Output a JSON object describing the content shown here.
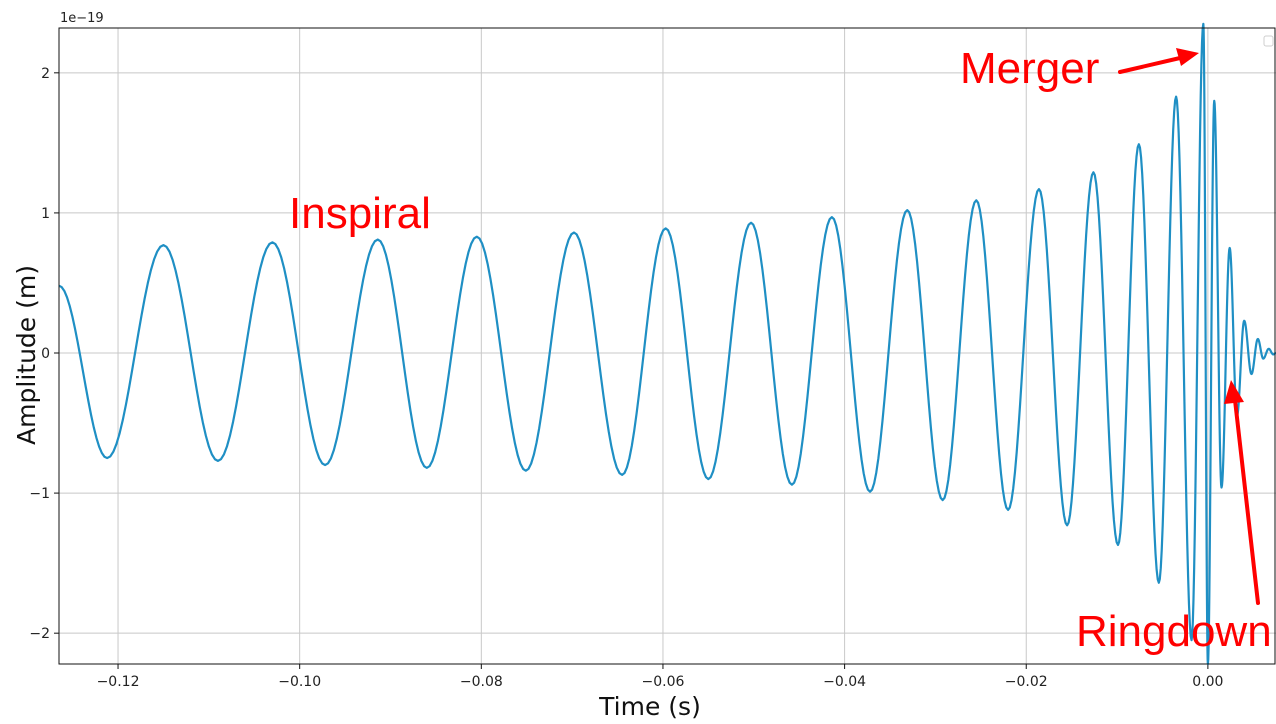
{
  "chart_data": {
    "type": "line",
    "title": "",
    "xlabel": "Time (s)",
    "ylabel": "Amplitude (m)",
    "offset_text": "1e−19",
    "xlim": [
      -0.1265,
      0.0075
    ],
    "ylim": [
      -2.22,
      2.32
    ],
    "grid": true,
    "x_ticks": [
      -0.12,
      -0.1,
      -0.08,
      -0.06,
      -0.04,
      -0.02,
      0.0
    ],
    "x_tick_labels": [
      "−0.12",
      "−0.10",
      "−0.08",
      "−0.06",
      "−0.04",
      "−0.02",
      "0.00"
    ],
    "y_ticks": [
      -2,
      -1,
      0,
      1,
      2
    ],
    "y_tick_labels": [
      "−2",
      "−1",
      "0",
      "1",
      "2"
    ],
    "line_color": "#1f8fc4",
    "series": [
      {
        "extrema": [
          [
            -0.1265,
            0.48
          ],
          [
            -0.1212,
            -0.75
          ],
          [
            -0.115,
            0.77
          ],
          [
            -0.109,
            -0.77
          ],
          [
            -0.103,
            0.79
          ],
          [
            -0.0972,
            -0.8
          ],
          [
            -0.0914,
            0.81
          ],
          [
            -0.086,
            -0.82
          ],
          [
            -0.0805,
            0.83
          ],
          [
            -0.0751,
            -0.84
          ],
          [
            -0.0698,
            0.86
          ],
          [
            -0.0645,
            -0.87
          ],
          [
            -0.0597,
            0.89
          ],
          [
            -0.055,
            -0.9
          ],
          [
            -0.0503,
            0.93
          ],
          [
            -0.0458,
            -0.94
          ],
          [
            -0.0414,
            0.97
          ],
          [
            -0.0372,
            -0.99
          ],
          [
            -0.0331,
            1.02
          ],
          [
            -0.0292,
            -1.05
          ],
          [
            -0.0255,
            1.09
          ],
          [
            -0.022,
            -1.12
          ],
          [
            -0.0186,
            1.17
          ],
          [
            -0.0155,
            -1.23
          ],
          [
            -0.0126,
            1.29
          ],
          [
            -0.0099,
            -1.37
          ],
          [
            -0.0076,
            1.49
          ],
          [
            -0.0054,
            -1.64
          ],
          [
            -0.0035,
            1.83
          ],
          [
            -0.0018,
            -2.05
          ],
          [
            -0.0005,
            2.35
          ],
          [
            0.0,
            -2.22
          ],
          [
            0.0007,
            1.8
          ],
          [
            0.0015,
            -0.96
          ],
          [
            0.0024,
            0.75
          ],
          [
            0.0032,
            -0.45
          ],
          [
            0.004,
            0.23
          ],
          [
            0.0048,
            -0.15
          ],
          [
            0.0055,
            0.1
          ],
          [
            0.0061,
            -0.04
          ],
          [
            0.0067,
            0.03
          ],
          [
            0.0072,
            -0.01
          ],
          [
            0.0075,
            0.0
          ]
        ]
      }
    ],
    "annotations": [
      {
        "text": "Inspiral",
        "color": "#ff0000"
      },
      {
        "text": "Merger",
        "color": "#ff0000"
      },
      {
        "text": "Ringdown",
        "color": "#ff0000"
      }
    ]
  }
}
